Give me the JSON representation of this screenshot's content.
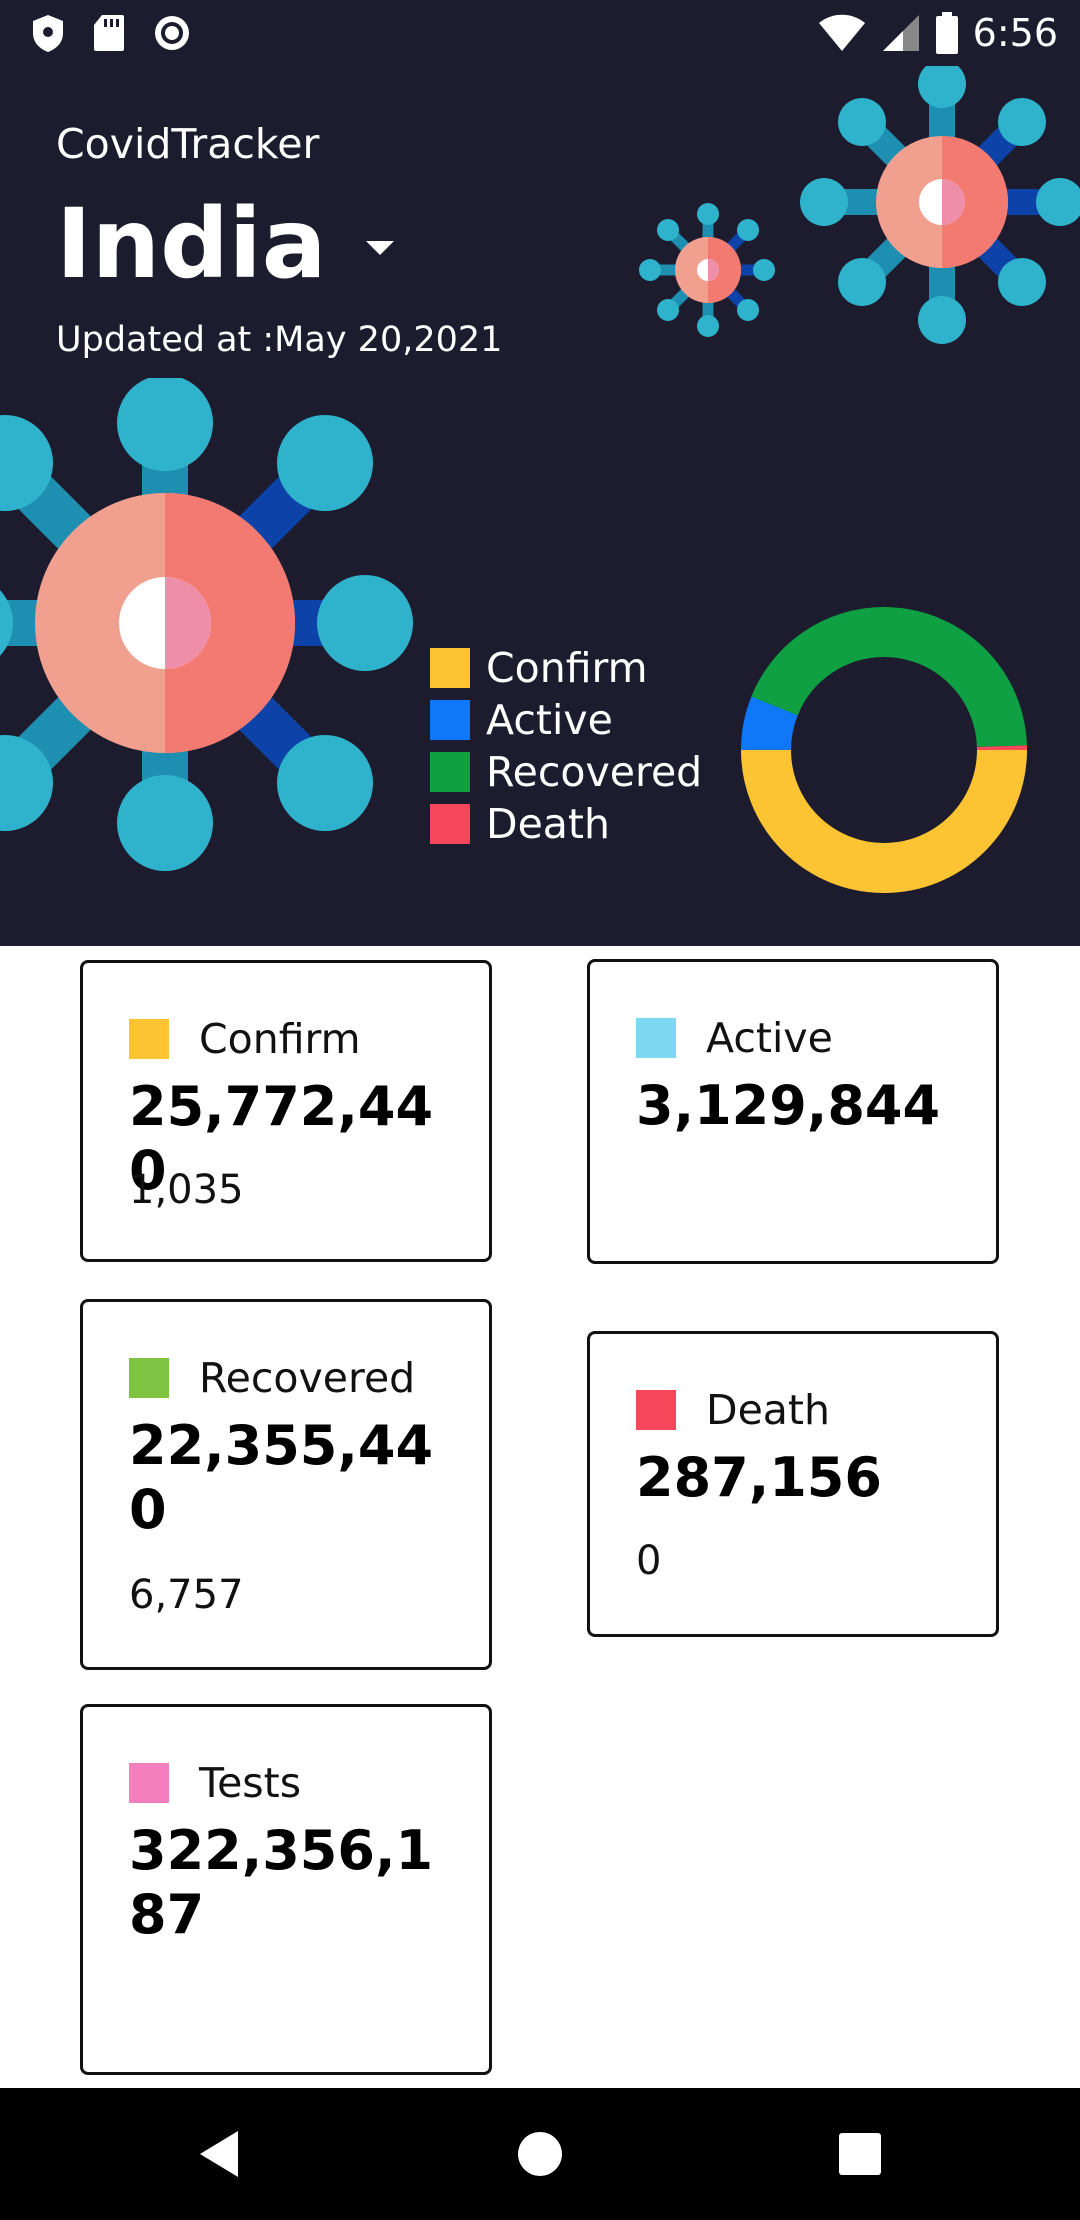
{
  "status_bar": {
    "time": "6:56",
    "icons": [
      "shield-icon",
      "sd-card-icon",
      "record-icon",
      "wifi-icon",
      "signal-icon",
      "battery-icon"
    ]
  },
  "header": {
    "app_name": "CovidTracker",
    "country": "India",
    "updated": "Updated at :May 20,2021"
  },
  "legend": [
    {
      "label": "Confirm",
      "color": "#fcc433"
    },
    {
      "label": "Active",
      "color": "#0f78f8"
    },
    {
      "label": "Recovered",
      "color": "#0ea043"
    },
    {
      "label": "Death",
      "color": "#f6475b"
    }
  ],
  "cards": {
    "confirm": {
      "label": "Confirm",
      "total": "25,772,440",
      "delta": "1,035",
      "color": "#fcc433"
    },
    "active": {
      "label": "Active",
      "total": "3,129,844",
      "delta": "",
      "color": "#7dd8f2"
    },
    "recovered": {
      "label": "Recovered",
      "total": "22,355,440",
      "delta": "6,757",
      "color": "#7fc342"
    },
    "death": {
      "label": "Death",
      "total": "287,156",
      "delta": "0",
      "color": "#f6475b"
    },
    "tests": {
      "label": "Tests",
      "total": "322,356,187",
      "delta": "",
      "color": "#f47fbd"
    }
  },
  "chart_data": {
    "type": "pie",
    "title": "",
    "categories": [
      "Confirm",
      "Active",
      "Recovered",
      "Death"
    ],
    "values": [
      25772440,
      3129844,
      22355440,
      287156
    ],
    "colors": [
      "#fcc433",
      "#0f78f8",
      "#0ea043",
      "#f6475b"
    ],
    "legend_position": "left"
  },
  "nav": {
    "icons": [
      "back-icon",
      "home-icon",
      "recents-icon"
    ]
  }
}
